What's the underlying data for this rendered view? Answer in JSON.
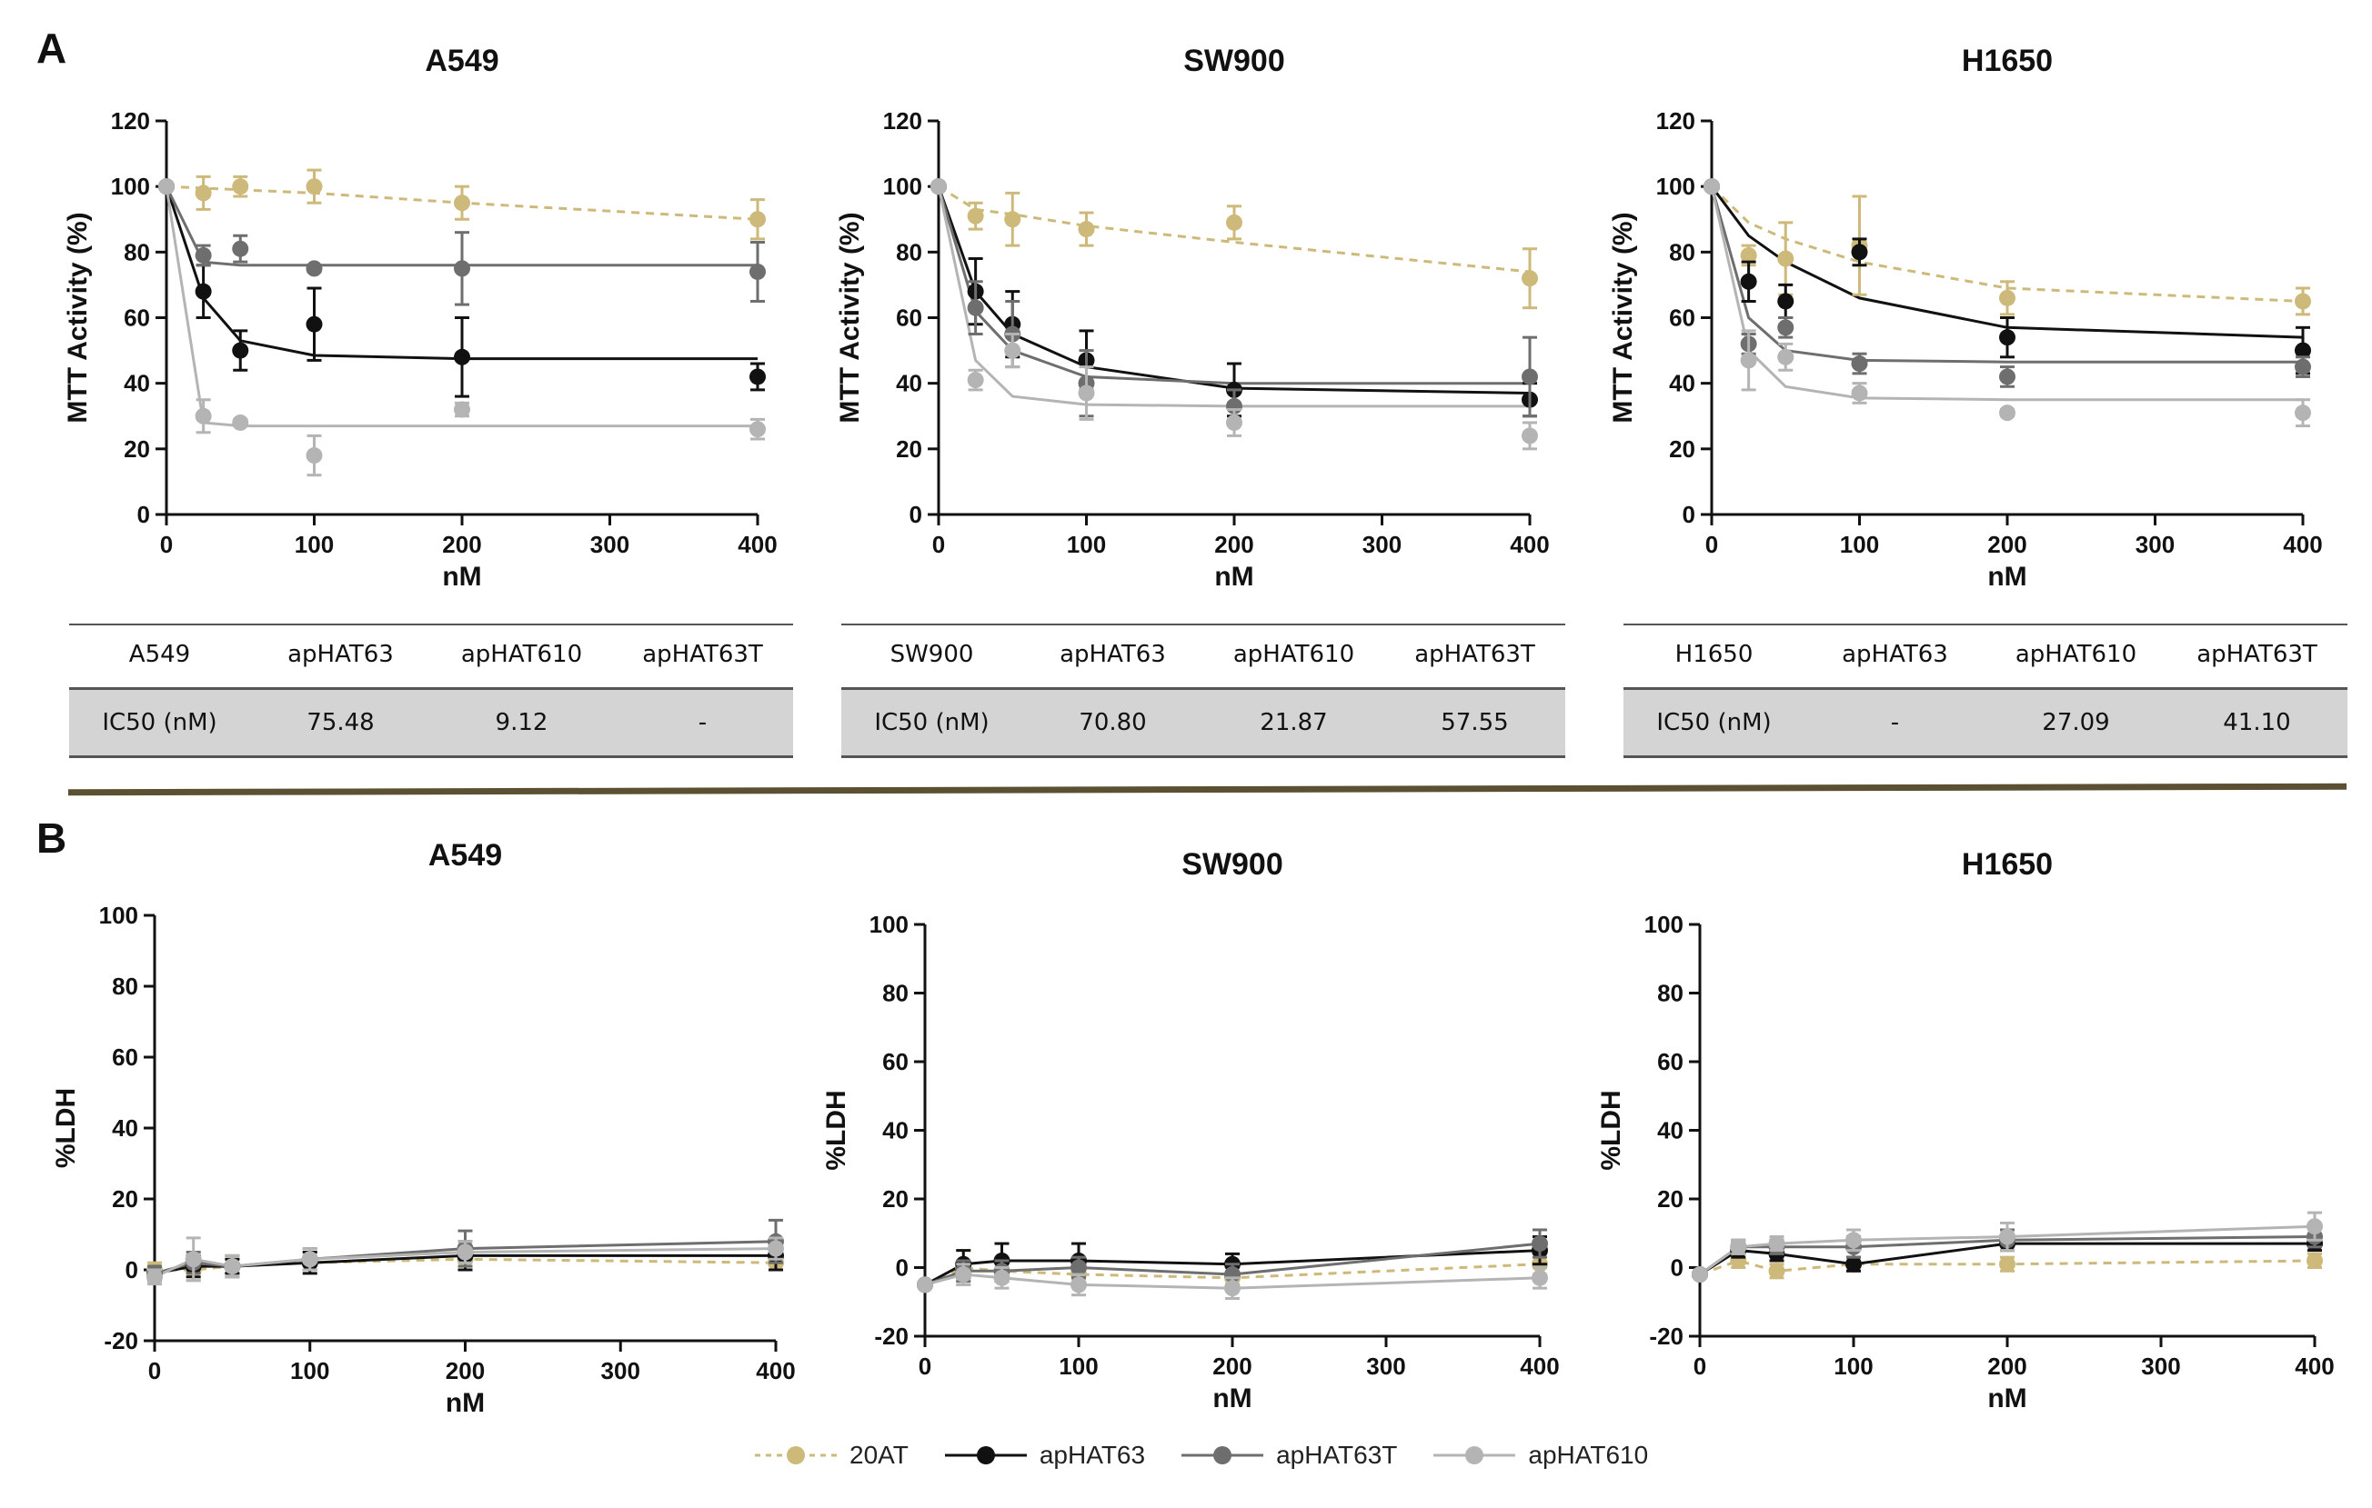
{
  "panel_labels": {
    "top": "A",
    "bottom": "B"
  },
  "series_styles": {
    "20AT": {
      "color": "#cdb97a",
      "dashed": true
    },
    "apHAT63": {
      "color": "#111111",
      "dashed": false
    },
    "apHAT63T": {
      "color": "#6e6e6e",
      "dashed": false
    },
    "apHAT610": {
      "color": "#b4b4b4",
      "dashed": false
    }
  },
  "legend": [
    "20AT",
    "apHAT63",
    "apHAT63T",
    "apHAT610"
  ],
  "chart_data": [
    {
      "type": "scatter",
      "title": "A549",
      "xlabel": "nM",
      "ylabel": "MTT Activity (%)",
      "xlim": [
        0,
        400
      ],
      "ylim": [
        0,
        120
      ],
      "xticks": [
        0,
        100,
        200,
        300,
        400
      ],
      "yticks": [
        0,
        20,
        40,
        60,
        80,
        100,
        120
      ],
      "x": [
        0,
        25,
        50,
        100,
        200,
        400
      ],
      "series": [
        {
          "name": "20AT",
          "values": [
            100,
            98,
            100,
            100,
            95,
            90
          ],
          "err": [
            0,
            5,
            3,
            5,
            5,
            6
          ],
          "fit": [
            100,
            99.5,
            99,
            98,
            95,
            90
          ]
        },
        {
          "name": "apHAT63",
          "values": [
            100,
            68,
            50,
            58,
            48,
            42
          ],
          "err": [
            0,
            8,
            6,
            11,
            12,
            4
          ],
          "fit": [
            100,
            66,
            53,
            48.5,
            47.5,
            47.5
          ]
        },
        {
          "name": "apHAT63T",
          "values": [
            100,
            79,
            81,
            75,
            75,
            74
          ],
          "err": [
            0,
            3,
            4,
            1,
            11,
            9
          ],
          "fit": [
            100,
            77,
            76,
            76,
            76,
            76
          ]
        },
        {
          "name": "apHAT610",
          "values": [
            100,
            30,
            28,
            18,
            32,
            26
          ],
          "err": [
            0,
            5,
            1,
            6,
            2,
            3
          ],
          "fit": [
            100,
            28,
            27,
            27,
            27,
            27
          ]
        }
      ],
      "table": {
        "cell": "A549",
        "headers": [
          "apHAT63",
          "apHAT610",
          "apHAT63T"
        ],
        "row_label": "IC50 (nM)",
        "values": [
          "75.48",
          "9.12",
          "-"
        ]
      }
    },
    {
      "type": "scatter",
      "title": "SW900",
      "xlabel": "nM",
      "ylabel": "MTT Activity (%)",
      "xlim": [
        0,
        400
      ],
      "ylim": [
        0,
        120
      ],
      "xticks": [
        0,
        100,
        200,
        300,
        400
      ],
      "yticks": [
        0,
        20,
        40,
        60,
        80,
        100,
        120
      ],
      "x": [
        0,
        25,
        50,
        100,
        200,
        400
      ],
      "series": [
        {
          "name": "20AT",
          "values": [
            100,
            91,
            90,
            87,
            89,
            72
          ],
          "err": [
            0,
            4,
            8,
            5,
            5,
            9
          ],
          "fit": [
            100,
            93,
            91.5,
            88,
            83,
            74
          ]
        },
        {
          "name": "apHAT63",
          "values": [
            100,
            68,
            58,
            47,
            38,
            35
          ],
          "err": [
            0,
            10,
            10,
            9,
            8,
            5
          ],
          "fit": [
            100,
            68,
            55,
            45,
            38.5,
            37
          ]
        },
        {
          "name": "apHAT63T",
          "values": [
            100,
            63,
            55,
            40,
            33,
            42
          ],
          "err": [
            0,
            8,
            10,
            10,
            5,
            12
          ],
          "fit": [
            100,
            62,
            50,
            42,
            40,
            40
          ]
        },
        {
          "name": "apHAT610",
          "values": [
            100,
            41,
            50,
            37,
            28,
            24
          ],
          "err": [
            0,
            3,
            5,
            8,
            4,
            4
          ],
          "fit": [
            100,
            47,
            36,
            33.5,
            33,
            33
          ]
        }
      ],
      "table": {
        "cell": "SW900",
        "headers": [
          "apHAT63",
          "apHAT610",
          "apHAT63T"
        ],
        "row_label": "IC50 (nM)",
        "values": [
          "70.80",
          "21.87",
          "57.55"
        ]
      }
    },
    {
      "type": "scatter",
      "title": "H1650",
      "xlabel": "nM",
      "ylabel": "MTT Activity (%)",
      "xlim": [
        0,
        400
      ],
      "ylim": [
        0,
        120
      ],
      "xticks": [
        0,
        100,
        200,
        300,
        400
      ],
      "yticks": [
        0,
        20,
        40,
        60,
        80,
        100,
        120
      ],
      "x": [
        0,
        25,
        50,
        100,
        200,
        400
      ],
      "series": [
        {
          "name": "20AT",
          "values": [
            100,
            79,
            78,
            82,
            66,
            65
          ],
          "err": [
            0,
            3,
            11,
            15,
            5,
            4
          ],
          "fit": [
            100,
            89,
            84,
            77,
            69,
            65
          ]
        },
        {
          "name": "apHAT63",
          "values": [
            100,
            71,
            65,
            80,
            54,
            50
          ],
          "err": [
            0,
            6,
            5,
            4,
            6,
            7
          ],
          "fit": [
            100,
            85,
            77,
            66,
            57,
            54
          ]
        },
        {
          "name": "apHAT63T",
          "values": [
            100,
            52,
            57,
            46,
            42,
            45
          ],
          "err": [
            0,
            3,
            3,
            3,
            3,
            3
          ],
          "fit": [
            100,
            60,
            50,
            47,
            46.5,
            46.5
          ]
        },
        {
          "name": "apHAT610",
          "values": [
            100,
            47,
            48,
            37,
            31,
            31
          ],
          "err": [
            0,
            9,
            4,
            3,
            1,
            4
          ],
          "fit": [
            100,
            50,
            39,
            35.5,
            35,
            35
          ]
        }
      ],
      "table": {
        "cell": "H1650",
        "headers": [
          "apHAT63",
          "apHAT610",
          "apHAT63T"
        ],
        "row_label": "IC50 (nM)",
        "values": [
          "-",
          "27.09",
          "41.10"
        ]
      }
    },
    {
      "type": "line",
      "title": "A549",
      "xlabel": "nM",
      "ylabel": "%LDH",
      "xlim": [
        0,
        400
      ],
      "ylim": [
        -20,
        100
      ],
      "xticks": [
        0,
        100,
        200,
        300,
        400
      ],
      "yticks": [
        -20,
        0,
        20,
        40,
        60,
        80,
        100
      ],
      "x": [
        0,
        25,
        50,
        100,
        200,
        400
      ],
      "series": [
        {
          "name": "20AT",
          "values": [
            0,
            0,
            1,
            2,
            3,
            2
          ],
          "err": [
            2,
            3,
            2,
            2,
            2,
            2
          ]
        },
        {
          "name": "apHAT63",
          "values": [
            -1,
            1,
            1,
            2,
            4,
            4
          ],
          "err": [
            2,
            3,
            2,
            3,
            4,
            4
          ]
        },
        {
          "name": "apHAT63T",
          "values": [
            -1,
            2,
            1,
            3,
            6,
            8
          ],
          "err": [
            2,
            3,
            3,
            3,
            5,
            6
          ]
        },
        {
          "name": "apHAT610",
          "values": [
            -2,
            3,
            1,
            3,
            5,
            6
          ],
          "err": [
            2,
            6,
            3,
            3,
            3,
            3
          ]
        }
      ]
    },
    {
      "type": "line",
      "title": "SW900",
      "xlabel": "nM",
      "ylabel": "%LDH",
      "xlim": [
        0,
        400
      ],
      "ylim": [
        -20,
        100
      ],
      "xticks": [
        0,
        100,
        200,
        300,
        400
      ],
      "yticks": [
        -20,
        0,
        20,
        40,
        60,
        80,
        100
      ],
      "x": [
        0,
        25,
        50,
        100,
        200,
        400
      ],
      "series": [
        {
          "name": "20AT",
          "values": [
            -5,
            0,
            -1,
            -2,
            -3,
            1
          ],
          "err": [
            0,
            5,
            3,
            3,
            3,
            3
          ]
        },
        {
          "name": "apHAT63",
          "values": [
            -5,
            1,
            2,
            2,
            1,
            5
          ],
          "err": [
            0,
            4,
            5,
            5,
            3,
            4
          ]
        },
        {
          "name": "apHAT63T",
          "values": [
            -5,
            -1,
            -1,
            0,
            -2,
            7
          ],
          "err": [
            0,
            3,
            3,
            3,
            3,
            4
          ]
        },
        {
          "name": "apHAT610",
          "values": [
            -5,
            -2,
            -3,
            -5,
            -6,
            -3
          ],
          "err": [
            0,
            3,
            3,
            3,
            3,
            3
          ]
        }
      ]
    },
    {
      "type": "line",
      "title": "H1650",
      "xlabel": "nM",
      "ylabel": "%LDH",
      "xlim": [
        0,
        400
      ],
      "ylim": [
        -20,
        100
      ],
      "xticks": [
        0,
        100,
        200,
        300,
        400
      ],
      "yticks": [
        -20,
        0,
        20,
        40,
        60,
        80,
        100
      ],
      "x": [
        0,
        25,
        50,
        100,
        200,
        400
      ],
      "series": [
        {
          "name": "20AT",
          "values": [
            -2,
            2,
            -1,
            1,
            1,
            2
          ],
          "err": [
            0,
            2,
            2,
            2,
            2,
            2
          ]
        },
        {
          "name": "apHAT63",
          "values": [
            -2,
            5,
            4,
            1,
            7,
            7
          ],
          "err": [
            0,
            2,
            2,
            2,
            2,
            2
          ]
        },
        {
          "name": "apHAT63T",
          "values": [
            -2,
            6,
            6,
            6,
            8,
            9
          ],
          "err": [
            0,
            2,
            2,
            3,
            3,
            3
          ]
        },
        {
          "name": "apHAT610",
          "values": [
            -2,
            6,
            7,
            8,
            9,
            12
          ],
          "err": [
            0,
            2,
            2,
            3,
            4,
            4
          ]
        }
      ]
    }
  ]
}
